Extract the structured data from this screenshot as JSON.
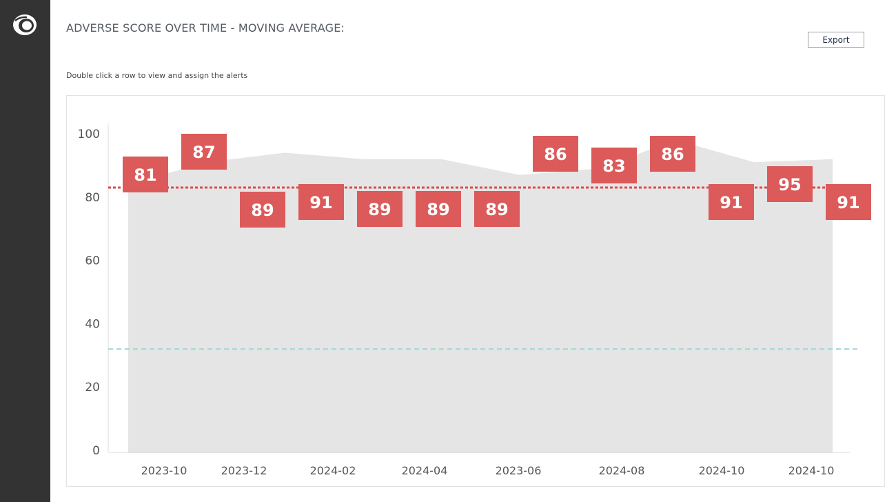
{
  "page": {
    "title": "ADVERSE SCORE OVER TIME - MOVING AVERAGE:",
    "export_label": "Export",
    "hint": "Double click a row to view and assign the alerts"
  },
  "sidebar": {
    "logo_icon": "eye-logo-icon",
    "background_color": "#333333"
  },
  "chart_data": {
    "type": "area",
    "title": "",
    "xlabel": "",
    "ylabel": "",
    "ylim": [
      0,
      100
    ],
    "yticks": [
      0,
      20,
      40,
      60,
      80,
      100
    ],
    "x_tick_labels": [
      "2023-10",
      "2023-12",
      "2024-02",
      "2024-04",
      "2023-06",
      "2024-08",
      "2024-10",
      "2024-10"
    ],
    "area": {
      "color": "#e5e5e5",
      "values": [
        84,
        91,
        94,
        92,
        92,
        87,
        89,
        98,
        91,
        92
      ]
    },
    "value_labels": [
      81,
      87,
      89,
      91,
      89,
      89,
      89,
      86,
      83,
      86,
      91,
      95,
      91
    ],
    "value_label_color": "#dc5a5a",
    "reference_lines": [
      {
        "value": 83,
        "color": "#e04848",
        "style": "dotted"
      },
      {
        "value": 32,
        "color": "#9fd6d6",
        "style": "dashed"
      }
    ],
    "grid": false,
    "legend": "none"
  }
}
